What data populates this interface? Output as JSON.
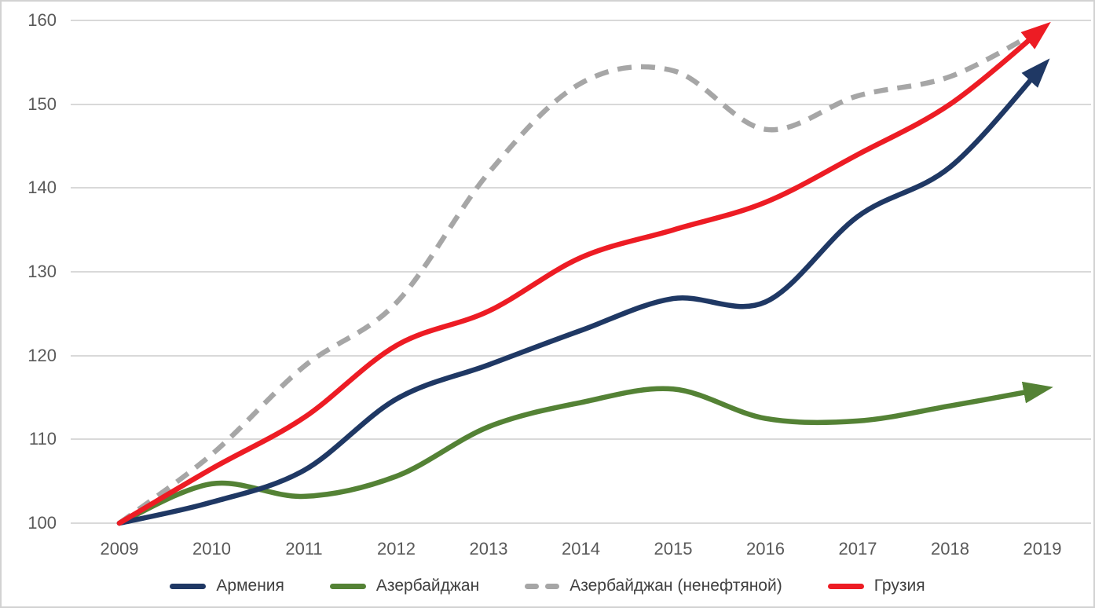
{
  "chart_data": {
    "type": "line",
    "title": "",
    "xlabel": "",
    "ylabel": "",
    "categories": [
      "2009",
      "2010",
      "2011",
      "2012",
      "2013",
      "2014",
      "2015",
      "2016",
      "2017",
      "2018",
      "2019"
    ],
    "y_ticks": [
      100,
      110,
      120,
      130,
      140,
      150,
      160
    ],
    "ylim": [
      100,
      160
    ],
    "grid": "horizontal",
    "legend_position": "bottom",
    "series": [
      {
        "key": "armenia",
        "name": "Армения",
        "color": "#1f3864",
        "dash": "solid",
        "arrow": true,
        "values": [
          100,
          102.5,
          106.3,
          114.8,
          118.9,
          123,
          126.8,
          126.4,
          136.6,
          142.5,
          154.5
        ]
      },
      {
        "key": "azerbaijan",
        "name": "Азербайджан",
        "color": "#548235",
        "dash": "solid",
        "arrow": true,
        "values": [
          100,
          104.7,
          103.2,
          105.6,
          111.5,
          114.4,
          116,
          112.5,
          112.2,
          114,
          116
        ]
      },
      {
        "key": "azerbaijan-non-oil",
        "name": "Азербайджан (ненефтяной)",
        "color": "#a6a6a6",
        "dash": "dashed",
        "arrow": false,
        "values": [
          100,
          108.2,
          118.7,
          126.3,
          141.8,
          152.5,
          154,
          147,
          151,
          153.3,
          159
        ]
      },
      {
        "key": "georgia",
        "name": "Грузия",
        "color": "#ed1c24",
        "dash": "solid",
        "arrow": true,
        "values": [
          100,
          106.5,
          112.6,
          121.2,
          125.3,
          131.7,
          135,
          138.3,
          144,
          150,
          159
        ]
      }
    ]
  },
  "colors": {
    "gridline": "#d9d9d9",
    "tick_text": "#595959",
    "legend_text": "#404040",
    "background": "#ffffff",
    "border": "#d2d2d2"
  }
}
